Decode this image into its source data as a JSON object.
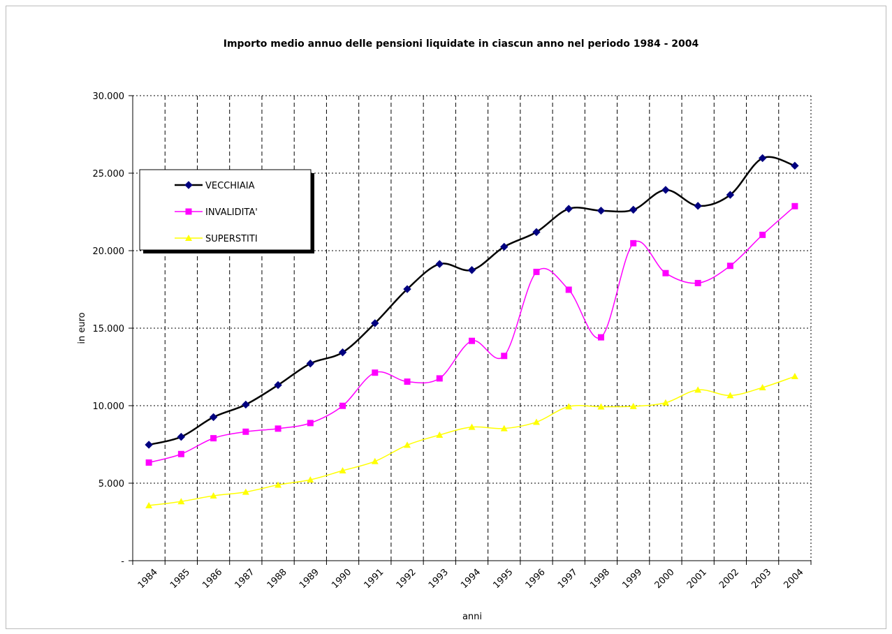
{
  "chart_data": {
    "type": "line",
    "title": "Importo medio annuo delle pensioni liquidate in ciascun anno nel periodo 1984 - 2004",
    "x_label": "anni",
    "y_label": "in euro",
    "categories": [
      "1984",
      "1985",
      "1986",
      "1987",
      "1988",
      "1989",
      "1990",
      "1991",
      "1992",
      "1993",
      "1994",
      "1995",
      "1996",
      "1997",
      "1998",
      "1999",
      "2000",
      "2001",
      "2002",
      "2003",
      "2004"
    ],
    "ylim": [
      0,
      30000
    ],
    "yticks": [
      {
        "value": 0,
        "label": "-"
      },
      {
        "value": 5000,
        "label": "5.000"
      },
      {
        "value": 10000,
        "label": "10.000"
      },
      {
        "value": 15000,
        "label": "15.000"
      },
      {
        "value": 20000,
        "label": "20.000"
      },
      {
        "value": 25000,
        "label": "25.000"
      },
      {
        "value": 30000,
        "label": "30.000"
      }
    ],
    "grid": true,
    "legend": "upper left",
    "series": [
      {
        "name": "VECCHIAIA",
        "color": "#000000",
        "marker_color": "#000080",
        "marker": "diamond",
        "values": [
          7480,
          7990,
          9260,
          10070,
          11330,
          12720,
          13440,
          15320,
          17520,
          19140,
          18750,
          20250,
          21200,
          22700,
          22580,
          22640,
          23920,
          22890,
          23600,
          25970,
          25480
        ]
      },
      {
        "name": "INVALIDITA'",
        "color": "#FF00FF",
        "marker_color": "#FF00FF",
        "marker": "square",
        "values": [
          6330,
          6880,
          7900,
          8320,
          8520,
          8880,
          9990,
          12130,
          11550,
          11760,
          14180,
          13210,
          18630,
          17480,
          14410,
          20480,
          18550,
          17910,
          19020,
          21020,
          22870
        ]
      },
      {
        "name": "SUPERSTITI",
        "color": "#FFFF00",
        "marker_color": "#FFFF00",
        "marker": "triangle",
        "values": [
          3560,
          3820,
          4190,
          4430,
          4890,
          5220,
          5810,
          6410,
          7460,
          8110,
          8620,
          8530,
          8940,
          9940,
          9930,
          9960,
          10190,
          11020,
          10660,
          11170,
          11890
        ]
      }
    ]
  }
}
